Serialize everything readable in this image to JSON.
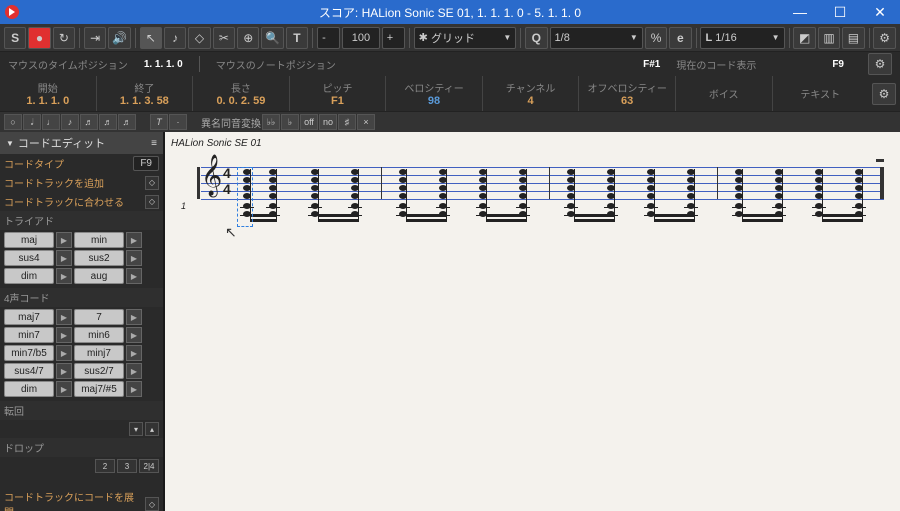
{
  "title": "スコア: HALion Sonic SE 01, 1. 1. 1.  0 - 5. 1. 1.  0",
  "toolbar": {
    "zoom": "100",
    "snap_label": "グリッド",
    "quantize": "1/8",
    "length": "1/16"
  },
  "info": {
    "mouse_time_lbl": "マウスのタイムポジション",
    "mouse_time_val": "1. 1. 1.   0",
    "mouse_note_lbl": "マウスのノートポジション",
    "mouse_note_val": "F#1",
    "chord_lbl": "現在のコード表示",
    "chord_key": "F9"
  },
  "fields": {
    "start_lbl": "開始",
    "start_val": "1. 1. 1.   0",
    "end_lbl": "終了",
    "end_val": "1. 1. 3.  58",
    "len_lbl": "長さ",
    "len_val": "0. 0. 2.  59",
    "pitch_lbl": "ピッチ",
    "pitch_val": "F1",
    "vel_lbl": "ベロシティー",
    "vel_val": "98",
    "ch_lbl": "チャンネル",
    "ch_val": "4",
    "offvel_lbl": "オフベロシティー",
    "offvel_val": "63",
    "voice_lbl": "ボイス",
    "voice_val": "",
    "text_lbl": "テキスト",
    "text_val": ""
  },
  "subbar": {
    "enharm": "異名同音変換",
    "off": "off",
    "no": "no"
  },
  "sidebar": {
    "hdr": "コードエディット",
    "type_lbl": "コードタイプ",
    "type_key": "F9",
    "add_track": "コードトラックを追加",
    "fit_track": "コードトラックに合わせる",
    "triad_hdr": "トライアド",
    "triads": [
      [
        "maj",
        "min"
      ],
      [
        "sus4",
        "sus2"
      ],
      [
        "dim",
        "aug"
      ]
    ],
    "four_hdr": "4声コード",
    "fours": [
      [
        "maj7",
        "7"
      ],
      [
        "min7",
        "min6"
      ],
      [
        "min7/b5",
        "minj7"
      ],
      [
        "sus4/7",
        "sus2/7"
      ],
      [
        "dim",
        "maj7/#5"
      ]
    ],
    "inv_hdr": "転回",
    "drop_hdr": "ドロップ",
    "drop_vals": [
      "2",
      "3",
      "2|4"
    ],
    "expand": "コードトラックにコードを展開"
  },
  "score": {
    "title": "HALion Sonic SE 01",
    "timesig_top": "4",
    "timesig_bot": "4",
    "bar_num": "1"
  }
}
